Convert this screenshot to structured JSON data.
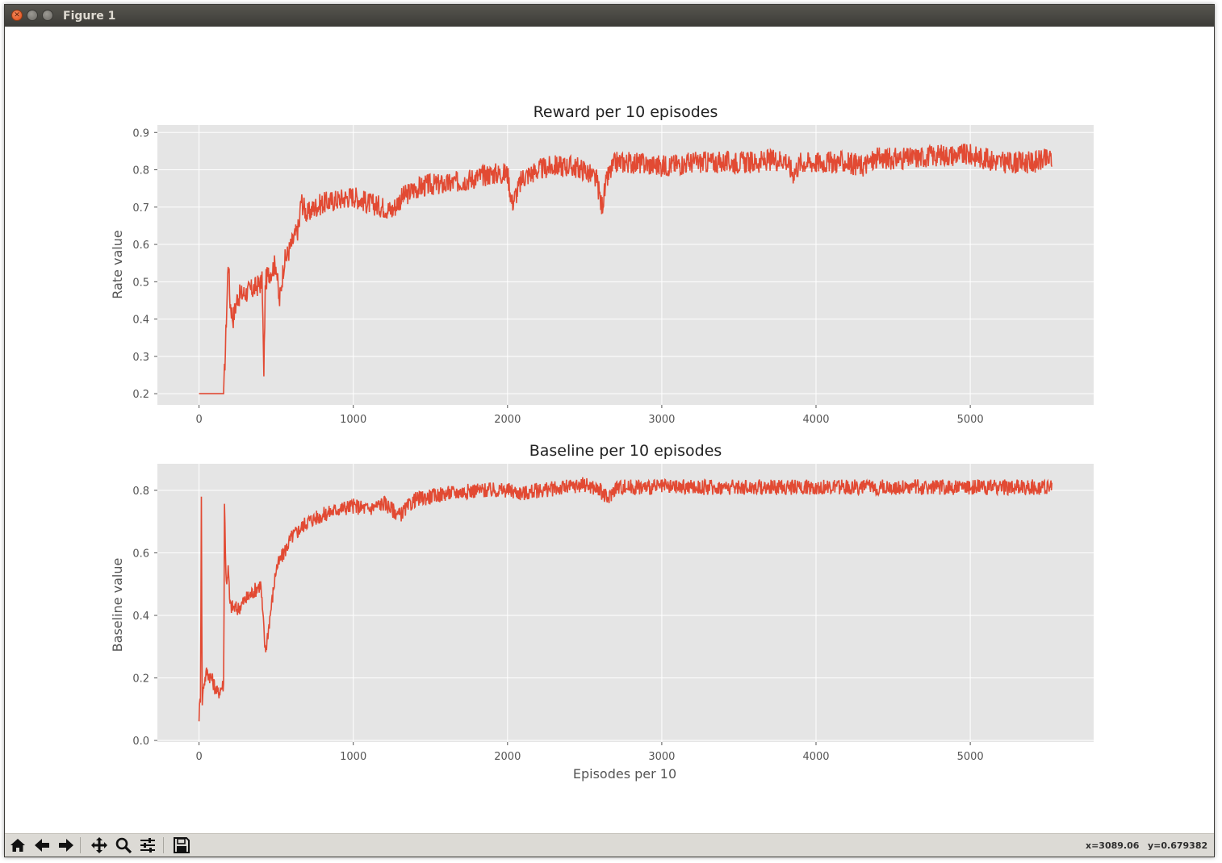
{
  "window": {
    "title": "Figure 1"
  },
  "colors": {
    "line": "#e24a33",
    "axes_bg": "#e5e5e5",
    "grid": "#ffffff",
    "tick_text": "#555555"
  },
  "toolbar": {
    "buttons": [
      {
        "name": "home-icon"
      },
      {
        "name": "back-arrow-icon"
      },
      {
        "name": "forward-arrow-icon"
      },
      {
        "name": "pan-icon"
      },
      {
        "name": "zoom-icon"
      },
      {
        "name": "configure-subplots-icon"
      },
      {
        "name": "save-icon"
      }
    ],
    "coord_x": "x=3089.06",
    "coord_y": "y=0.679382"
  },
  "chart_data": [
    {
      "type": "line",
      "title": "Reward per 10 episodes",
      "xlabel": "",
      "ylabel": "Rate value",
      "xlim": [
        -270,
        5800
      ],
      "ylim": [
        0.17,
        0.92
      ],
      "xticks": [
        0,
        1000,
        2000,
        3000,
        4000,
        5000
      ],
      "yticks": [
        0.2,
        0.3,
        0.4,
        0.5,
        0.6,
        0.7,
        0.8,
        0.9
      ],
      "ytick_labels": [
        "0.2",
        "0.3",
        "0.4",
        "0.5",
        "0.6",
        "0.7",
        "0.8",
        "0.9"
      ],
      "grid": true,
      "series": [
        {
          "x": [
            0,
            160,
            170,
            185,
            190,
            200,
            220,
            250,
            300,
            350,
            410,
            420,
            430,
            450,
            500,
            520,
            550,
            600,
            650,
            660,
            700,
            750,
            800,
            900,
            1000,
            1100,
            1200,
            1250,
            1300,
            1400,
            1500,
            1600,
            1700,
            1800,
            1900,
            2000,
            2030,
            2100,
            2200,
            2300,
            2400,
            2500,
            2580,
            2610,
            2650,
            2700,
            2800,
            3000,
            3200,
            3400,
            3600,
            3800,
            3850,
            3900,
            4000,
            4200,
            4300,
            4400,
            4600,
            4800,
            5000,
            5200,
            5300,
            5400,
            5530
          ],
          "y": [
            0.2,
            0.2,
            0.31,
            0.5,
            0.57,
            0.45,
            0.4,
            0.46,
            0.47,
            0.48,
            0.5,
            0.24,
            0.5,
            0.52,
            0.55,
            0.44,
            0.55,
            0.6,
            0.65,
            0.72,
            0.68,
            0.7,
            0.71,
            0.72,
            0.73,
            0.71,
            0.7,
            0.69,
            0.72,
            0.75,
            0.76,
            0.76,
            0.77,
            0.78,
            0.79,
            0.79,
            0.71,
            0.78,
            0.8,
            0.81,
            0.81,
            0.8,
            0.77,
            0.7,
            0.78,
            0.82,
            0.82,
            0.81,
            0.82,
            0.82,
            0.82,
            0.83,
            0.79,
            0.82,
            0.82,
            0.82,
            0.81,
            0.83,
            0.83,
            0.84,
            0.84,
            0.82,
            0.82,
            0.82,
            0.83
          ],
          "noise": 0.03
        }
      ]
    },
    {
      "type": "line",
      "title": "Baseline per 10 episodes",
      "xlabel": "Episodes per 10",
      "ylabel": "Baseline value",
      "xlim": [
        -270,
        5800
      ],
      "ylim": [
        -0.005,
        0.885
      ],
      "xticks": [
        0,
        1000,
        2000,
        3000,
        4000,
        5000
      ],
      "yticks": [
        0.0,
        0.2,
        0.4,
        0.6,
        0.8
      ],
      "ytick_labels": [
        "0.0",
        "0.2",
        "0.4",
        "0.6",
        "0.8"
      ],
      "grid": true,
      "series": [
        {
          "x": [
            0,
            10,
            15,
            20,
            30,
            50,
            80,
            120,
            160,
            165,
            175,
            190,
            200,
            250,
            300,
            400,
            430,
            500,
            600,
            700,
            800,
            900,
            1000,
            1100,
            1200,
            1300,
            1400,
            1500,
            1600,
            1800,
            2000,
            2100,
            2200,
            2400,
            2500,
            2600,
            2650,
            2700,
            2900,
            3000,
            3200,
            3500,
            4000,
            4500,
            5000,
            5300,
            5530
          ],
          "y": [
            0.08,
            0.15,
            0.8,
            0.12,
            0.18,
            0.22,
            0.2,
            0.15,
            0.18,
            0.78,
            0.5,
            0.55,
            0.43,
            0.42,
            0.45,
            0.5,
            0.28,
            0.55,
            0.65,
            0.7,
            0.72,
            0.74,
            0.75,
            0.74,
            0.76,
            0.72,
            0.77,
            0.78,
            0.79,
            0.8,
            0.8,
            0.79,
            0.8,
            0.81,
            0.82,
            0.8,
            0.77,
            0.81,
            0.81,
            0.81,
            0.81,
            0.81,
            0.81,
            0.81,
            0.81,
            0.81,
            0.81
          ],
          "noise": 0.025
        }
      ]
    }
  ]
}
